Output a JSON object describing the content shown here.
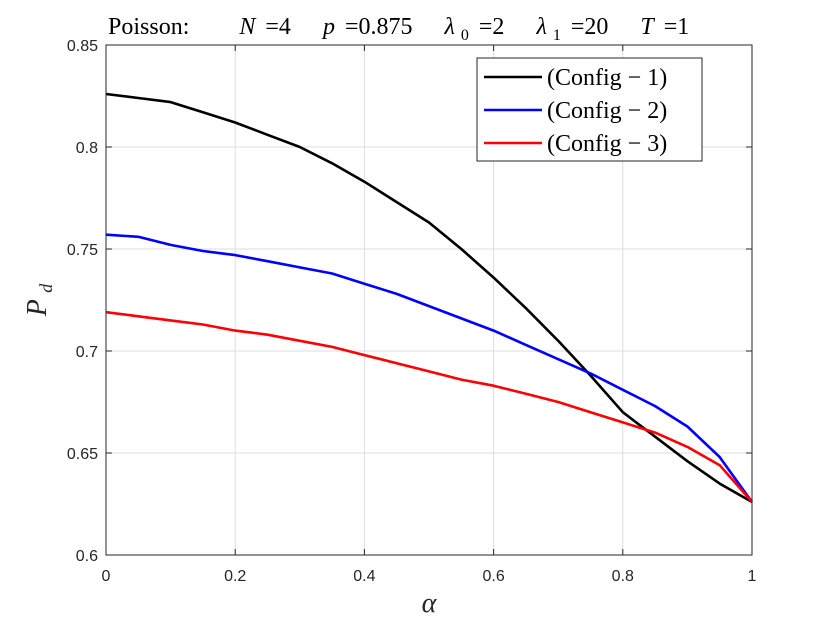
{
  "chart_data": {
    "type": "line",
    "title": {
      "dist": "Poisson:",
      "N_label": "N",
      "N_value": "=4",
      "p_label": "p",
      "p_value": "=0.875",
      "lambda0_label": "λ",
      "lambda0_sub": "0",
      "lambda0_value": "=2",
      "lambda1_label": "λ",
      "lambda1_sub": "1",
      "lambda1_value": "=20",
      "T_label": "T",
      "T_value": "=1"
    },
    "xlabel": "α",
    "ylabel": "P",
    "ylabel_sub": "d",
    "xlim": [
      0,
      1
    ],
    "ylim": [
      0.6,
      0.85
    ],
    "xticks": [
      0,
      0.2,
      0.4,
      0.6,
      0.8,
      1
    ],
    "xtick_labels": [
      "0",
      "0.2",
      "0.4",
      "0.6",
      "0.8",
      "1"
    ],
    "yticks": [
      0.6,
      0.65,
      0.7,
      0.75,
      0.8,
      0.85
    ],
    "ytick_labels": [
      "0.6",
      "0.65",
      "0.7",
      "0.75",
      "0.8",
      "0.85"
    ],
    "grid": true,
    "legend_position": "top-right",
    "x": [
      0,
      0.05,
      0.1,
      0.15,
      0.2,
      0.25,
      0.3,
      0.35,
      0.4,
      0.45,
      0.5,
      0.55,
      0.6,
      0.65,
      0.7,
      0.75,
      0.8,
      0.85,
      0.9,
      0.95,
      1.0
    ],
    "series": [
      {
        "name": "(Config − 1)",
        "color": "#000000",
        "values": [
          0.826,
          0.824,
          0.822,
          0.817,
          0.812,
          0.806,
          0.8,
          0.792,
          0.783,
          0.773,
          0.763,
          0.75,
          0.736,
          0.721,
          0.705,
          0.688,
          0.67,
          0.658,
          0.646,
          0.635,
          0.626
        ]
      },
      {
        "name": "(Config − 2)",
        "color": "#0000ff",
        "values": [
          0.757,
          0.756,
          0.752,
          0.749,
          0.747,
          0.744,
          0.741,
          0.738,
          0.733,
          0.728,
          0.722,
          0.716,
          0.71,
          0.703,
          0.696,
          0.689,
          0.681,
          0.673,
          0.663,
          0.648,
          0.626
        ]
      },
      {
        "name": "(Config − 3)",
        "color": "#ff0000",
        "values": [
          0.719,
          0.717,
          0.715,
          0.713,
          0.71,
          0.708,
          0.705,
          0.702,
          0.698,
          0.694,
          0.69,
          0.686,
          0.683,
          0.679,
          0.675,
          0.67,
          0.665,
          0.66,
          0.653,
          0.644,
          0.626
        ]
      }
    ]
  }
}
